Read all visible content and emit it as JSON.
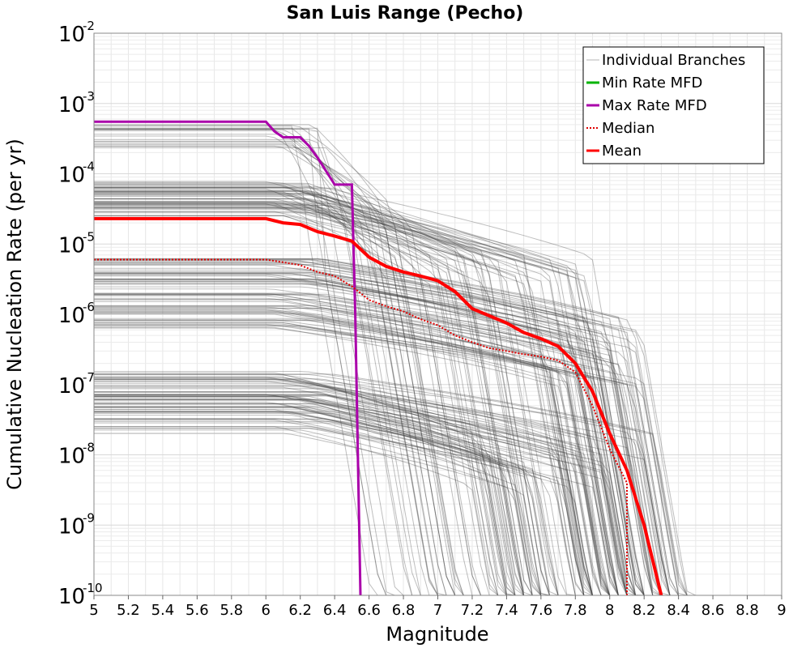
{
  "chart_data": {
    "type": "line",
    "title": "San Luis Range (Pecho)",
    "xlabel": "Magnitude",
    "ylabel": "Cumulative Nucleation Rate (per yr)",
    "xlim": [
      5,
      9
    ],
    "ylim": [
      1e-10,
      0.01
    ],
    "y_scale": "log",
    "grid": true,
    "x_ticks": [
      "5",
      "5.2",
      "5.4",
      "5.6",
      "5.8",
      "6",
      "6.2",
      "6.4",
      "6.6",
      "6.8",
      "7",
      "7.2",
      "7.4",
      "7.6",
      "7.8",
      "8",
      "8.2",
      "8.4",
      "8.6",
      "8.8",
      "9"
    ],
    "y_ticks": [
      {
        "base": "10",
        "exp": "-2",
        "value": 0.01
      },
      {
        "base": "10",
        "exp": "-3",
        "value": 0.001
      },
      {
        "base": "10",
        "exp": "-4",
        "value": 0.0001
      },
      {
        "base": "10",
        "exp": "-5",
        "value": 1e-05
      },
      {
        "base": "10",
        "exp": "-6",
        "value": 1e-06
      },
      {
        "base": "10",
        "exp": "-7",
        "value": 1e-07
      },
      {
        "base": "10",
        "exp": "-8",
        "value": 1e-08
      },
      {
        "base": "10",
        "exp": "-9",
        "value": 1e-09
      },
      {
        "base": "10",
        "exp": "-10",
        "value": 1e-10
      }
    ],
    "legend_position": "top-right",
    "legend": [
      {
        "label": "Individual Branches",
        "color": "#b4b4b4",
        "style": "solid"
      },
      {
        "label": "Min Rate MFD",
        "color": "#00b400",
        "style": "solid"
      },
      {
        "label": "Max Rate MFD",
        "color": "#aa00aa",
        "style": "solid"
      },
      {
        "label": " Median",
        "color": "#e00000",
        "style": "dotted"
      },
      {
        "label": "Mean",
        "color": "#ff0000",
        "style": "solid"
      }
    ],
    "series": [
      {
        "name": "Mean",
        "color": "#ff0000",
        "style": "solid",
        "x": [
          5.0,
          6.0,
          6.1,
          6.2,
          6.3,
          6.4,
          6.5,
          6.6,
          6.7,
          6.8,
          6.9,
          7.0,
          7.1,
          7.2,
          7.3,
          7.4,
          7.5,
          7.6,
          7.7,
          7.8,
          7.9,
          8.0,
          8.1,
          8.2,
          8.3
        ],
        "y": [
          2.3e-05,
          2.3e-05,
          2e-05,
          1.9e-05,
          1.5e-05,
          1.3e-05,
          1.1e-05,
          6.5e-06,
          4.8e-06,
          4e-06,
          3.5e-06,
          3e-06,
          2.1e-06,
          1.2e-06,
          9.5e-07,
          7.5e-07,
          5.5e-07,
          4.5e-07,
          3.5e-07,
          2e-07,
          8e-08,
          2e-08,
          6e-09,
          1e-09,
          1e-10
        ]
      },
      {
        "name": "Median",
        "color": "#e00000",
        "style": "dotted",
        "x": [
          5.0,
          6.0,
          6.1,
          6.2,
          6.3,
          6.4,
          6.5,
          6.6,
          6.7,
          6.8,
          6.9,
          7.0,
          7.1,
          7.2,
          7.3,
          7.4,
          7.5,
          7.6,
          7.7,
          7.8,
          7.9,
          8.0,
          8.1,
          8.1
        ],
        "y": [
          6e-06,
          6e-06,
          5.5e-06,
          5e-06,
          4e-06,
          3.5e-06,
          2.5e-06,
          1.6e-06,
          1.3e-06,
          1.1e-06,
          8.5e-07,
          7e-07,
          5e-07,
          4e-07,
          3.3e-07,
          3e-07,
          2.7e-07,
          2.5e-07,
          2.2e-07,
          1.5e-07,
          5e-08,
          1.2e-08,
          4e-09,
          1e-10
        ]
      },
      {
        "name": "Max Rate MFD",
        "color": "#aa00aa",
        "style": "solid",
        "x": [
          5.0,
          6.0,
          6.05,
          6.1,
          6.2,
          6.25,
          6.3,
          6.4,
          6.5,
          6.52,
          6.55
        ],
        "y": [
          0.00055,
          0.00055,
          0.0004,
          0.00033,
          0.00033,
          0.00025,
          0.00017,
          7e-05,
          7e-05,
          1e-06,
          1e-10
        ]
      }
    ]
  }
}
